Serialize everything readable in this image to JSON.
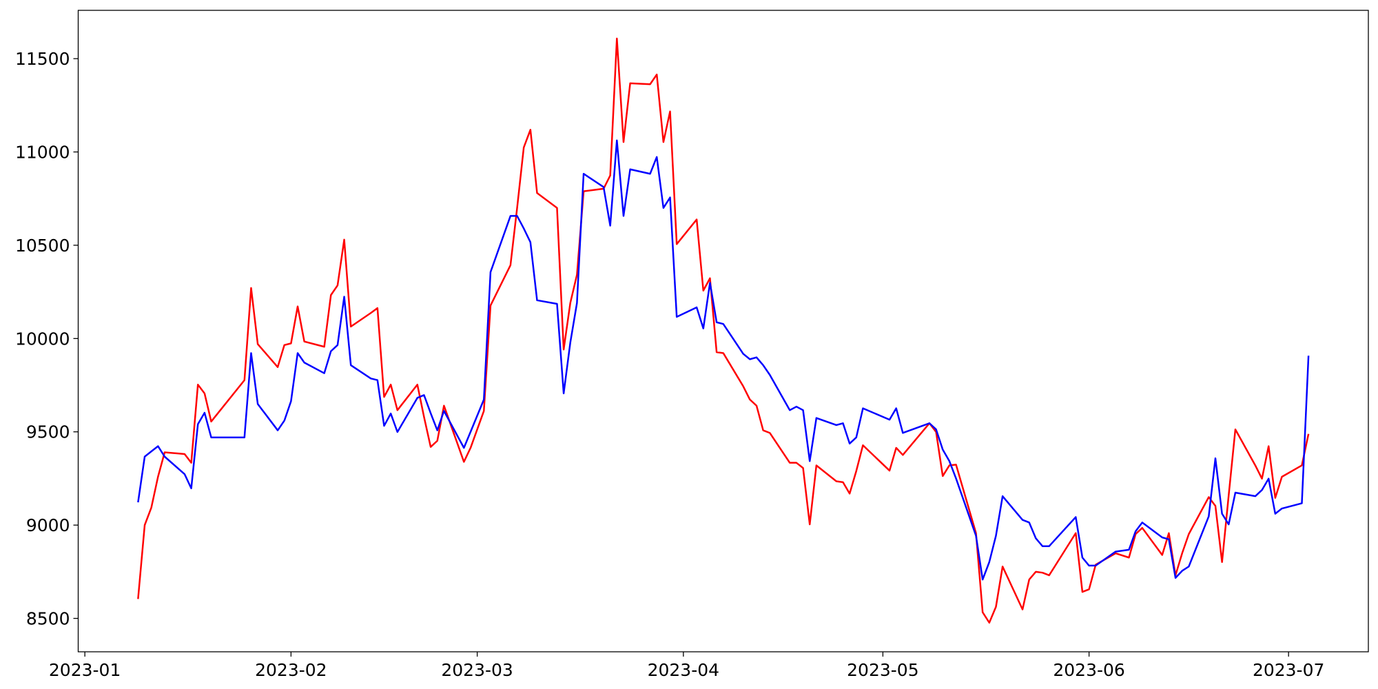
{
  "chart_data": {
    "type": "line",
    "x": [
      "2023-01-09",
      "2023-01-10",
      "2023-01-11",
      "2023-01-12",
      "2023-01-13",
      "2023-01-16",
      "2023-01-17",
      "2023-01-18",
      "2023-01-19",
      "2023-01-20",
      "2023-01-25",
      "2023-01-26",
      "2023-01-27",
      "2023-01-30",
      "2023-01-31",
      "2023-02-01",
      "2023-02-02",
      "2023-02-03",
      "2023-02-06",
      "2023-02-07",
      "2023-02-08",
      "2023-02-09",
      "2023-02-10",
      "2023-02-13",
      "2023-02-14",
      "2023-02-15",
      "2023-02-16",
      "2023-02-17",
      "2023-02-20",
      "2023-02-21",
      "2023-02-22",
      "2023-02-23",
      "2023-02-24",
      "2023-02-27",
      "2023-02-28",
      "2023-03-02",
      "2023-03-03",
      "2023-03-06",
      "2023-03-07",
      "2023-03-08",
      "2023-03-09",
      "2023-03-10",
      "2023-03-13",
      "2023-03-14",
      "2023-03-15",
      "2023-03-16",
      "2023-03-17",
      "2023-03-20",
      "2023-03-21",
      "2023-03-22",
      "2023-03-23",
      "2023-03-24",
      "2023-03-27",
      "2023-03-28",
      "2023-03-29",
      "2023-03-30",
      "2023-03-31",
      "2023-04-03",
      "2023-04-04",
      "2023-04-05",
      "2023-04-06",
      "2023-04-07",
      "2023-04-10",
      "2023-04-11",
      "2023-04-12",
      "2023-04-13",
      "2023-04-14",
      "2023-04-17",
      "2023-04-18",
      "2023-04-19",
      "2023-04-20",
      "2023-04-21",
      "2023-04-24",
      "2023-04-25",
      "2023-04-26",
      "2023-04-27",
      "2023-04-28",
      "2023-05-02",
      "2023-05-03",
      "2023-05-04",
      "2023-05-08",
      "2023-05-09",
      "2023-05-10",
      "2023-05-11",
      "2023-05-12",
      "2023-05-15",
      "2023-05-16",
      "2023-05-17",
      "2023-05-18",
      "2023-05-19",
      "2023-05-22",
      "2023-05-23",
      "2023-05-24",
      "2023-05-25",
      "2023-05-26",
      "2023-05-30",
      "2023-05-31",
      "2023-06-01",
      "2023-06-02",
      "2023-06-05",
      "2023-06-07",
      "2023-06-08",
      "2023-06-09",
      "2023-06-12",
      "2023-06-13",
      "2023-06-14",
      "2023-06-15",
      "2023-06-16",
      "2023-06-19",
      "2023-06-20",
      "2023-06-21",
      "2023-06-22",
      "2023-06-23",
      "2023-06-26",
      "2023-06-27",
      "2023-06-28",
      "2023-06-29",
      "2023-06-30",
      "2023-07-03",
      "2023-07-04"
    ],
    "series": [
      {
        "color": "#ff0000",
        "values": [
          8604,
          9000,
          9094,
          9259,
          9390,
          9381,
          9334,
          9753,
          9706,
          9555,
          9777,
          10271,
          9970,
          9847,
          9965,
          9974,
          10172,
          9984,
          9956,
          10233,
          10285,
          10530,
          10064,
          10137,
          10163,
          9687,
          9753,
          9616,
          9753,
          9580,
          9419,
          9452,
          9640,
          9339,
          9414,
          9612,
          10177,
          10393,
          10700,
          11024,
          11119,
          10780,
          10700,
          9941,
          10191,
          10342,
          10789,
          10803,
          10874,
          11608,
          11053,
          11368,
          11363,
          11415,
          11053,
          11217,
          10506,
          10638,
          10257,
          10323,
          9927,
          9922,
          9744,
          9673,
          9640,
          9508,
          9494,
          9334,
          9334,
          9306,
          9004,
          9320,
          9235,
          9230,
          9169,
          9290,
          9428,
          9292,
          9414,
          9376,
          9546,
          9499,
          9263,
          9320,
          9324,
          8957,
          8533,
          8477,
          8562,
          8778,
          8548,
          8708,
          8750,
          8745,
          8731,
          8957,
          8642,
          8656,
          8788,
          8849,
          8826,
          8952,
          8985,
          8840,
          8957,
          8731,
          8849,
          8952,
          9150,
          9103,
          8802,
          9160,
          9513,
          9320,
          9249,
          9423,
          9146,
          9259,
          9320,
          9489
        ]
      },
      {
        "color": "#0000ff",
        "values": [
          9122,
          9367,
          9395,
          9423,
          9367,
          9273,
          9197,
          9541,
          9602,
          9470,
          9470,
          9922,
          9649,
          9508,
          9560,
          9664,
          9922,
          9871,
          9814,
          9932,
          9965,
          10224,
          9857,
          9786,
          9777,
          9532,
          9598,
          9499,
          9682,
          9697,
          9600,
          9508,
          9612,
          9414,
          9500,
          9673,
          10356,
          10657,
          10657,
          10590,
          10516,
          10205,
          10186,
          9706,
          9979,
          10191,
          10883,
          10812,
          10605,
          11062,
          10657,
          10907,
          10883,
          10973,
          10700,
          10756,
          10116,
          10167,
          10054,
          10299,
          10087,
          10078,
          9918,
          9889,
          9899,
          9857,
          9805,
          9616,
          9635,
          9616,
          9343,
          9574,
          9536,
          9546,
          9437,
          9470,
          9626,
          9565,
          9626,
          9494,
          9546,
          9513,
          9405,
          9343,
          9250,
          8943,
          8708,
          8802,
          8943,
          9155,
          9028,
          9014,
          8929,
          8887,
          8887,
          9043,
          8826,
          8783,
          8783,
          8858,
          8868,
          8967,
          9014,
          8934,
          8924,
          8717,
          8755,
          8778,
          9047,
          9358,
          9061,
          9004,
          9174,
          9155,
          9188,
          9249,
          9061,
          9089,
          9117,
          9908
        ]
      }
    ],
    "xlim": [
      "2022-12-31",
      "2023-07-13"
    ],
    "xticks": [
      {
        "value": "2023-01-01",
        "label": "2023-01"
      },
      {
        "value": "2023-02-01",
        "label": "2023-02"
      },
      {
        "value": "2023-03-01",
        "label": "2023-03"
      },
      {
        "value": "2023-04-01",
        "label": "2023-04"
      },
      {
        "value": "2023-05-01",
        "label": "2023-05"
      },
      {
        "value": "2023-06-01",
        "label": "2023-06"
      },
      {
        "value": "2023-07-01",
        "label": "2023-07"
      }
    ],
    "ylim": [
      8321,
      11759
    ],
    "yticks": [
      8500,
      9000,
      9500,
      10000,
      10500,
      11000,
      11500
    ]
  }
}
